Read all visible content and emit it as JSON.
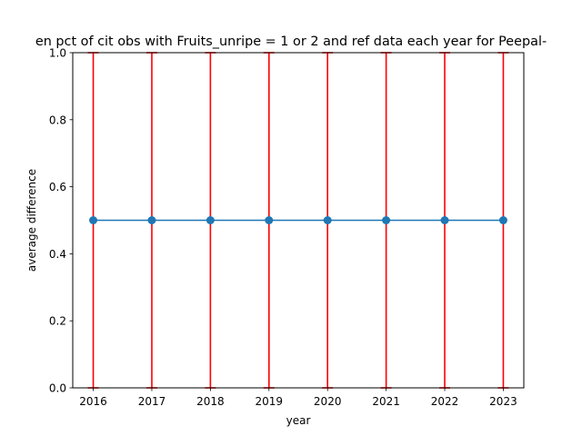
{
  "chart_data": {
    "type": "line",
    "title": "en pct of cit obs with Fruits_unripe = 1 or 2 and ref data each year for Peepal-",
    "xlabel": "year",
    "ylabel": "average difference",
    "x": [
      2016,
      2017,
      2018,
      2019,
      2020,
      2021,
      2022,
      2023
    ],
    "x_tick_labels": [
      "2016",
      "2017",
      "2018",
      "2019",
      "2020",
      "2021",
      "2022",
      "2023"
    ],
    "y_tick_labels": [
      "0.0",
      "0.2",
      "0.4",
      "0.6",
      "0.8",
      "1.0"
    ],
    "xlim": [
      2015.65,
      2023.35
    ],
    "ylim": [
      0.0,
      1.0
    ],
    "series": [
      {
        "values": [
          0.5,
          0.5,
          0.5,
          0.5,
          0.5,
          0.5,
          0.5,
          0.5
        ],
        "error_low": [
          0.0,
          0.0,
          0.0,
          0.0,
          0.0,
          0.0,
          0.0,
          0.0
        ],
        "error_high": [
          1.0,
          1.0,
          1.0,
          1.0,
          1.0,
          1.0,
          1.0,
          1.0
        ]
      }
    ],
    "grid": false,
    "colors": {
      "line": "#1f77b4",
      "error_bars": "#ff0000"
    }
  }
}
